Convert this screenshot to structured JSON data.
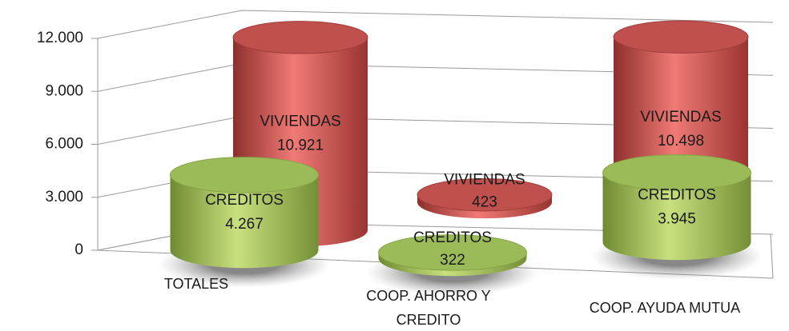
{
  "chart_data": {
    "type": "bar",
    "categories": [
      "TOTALES",
      "COOP. AHORRO Y CREDITO",
      "COOP. AYUDA MUTUA"
    ],
    "series": [
      {
        "name": "VIVIENDAS",
        "color": "#c0504d",
        "values": [
          10921,
          423,
          10498
        ],
        "value_labels": [
          "10.921",
          "423",
          "10.498"
        ]
      },
      {
        "name": "CREDITOS",
        "color": "#9bbb59",
        "values": [
          4267,
          322,
          3945
        ],
        "value_labels": [
          "4.267",
          "322",
          "3.945"
        ]
      }
    ],
    "ylim": [
      0,
      12000
    ],
    "yticks": [
      0,
      {
        "value": 3000,
        "label": "3.000"
      },
      {
        "value": 6000,
        "label": "6.000"
      },
      {
        "value": 9000,
        "label": "9.000"
      },
      {
        "value": 12000,
        "label": "12.000"
      }
    ],
    "grid": true
  }
}
